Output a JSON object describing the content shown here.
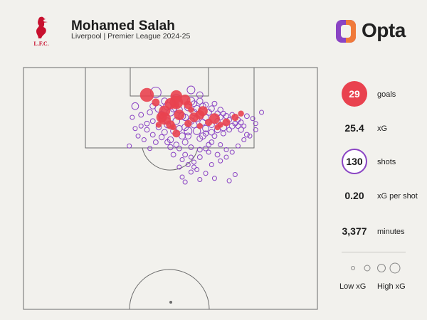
{
  "header": {
    "player_name": "Mohamed Salah",
    "subtitle": "Liverpool | Premier League 2024-25",
    "crest_text": "L.F.C.",
    "brand": "Opta"
  },
  "stats": {
    "goals_value": "29",
    "goals_label": "goals",
    "xg_value": "25.4",
    "xg_label": "xG",
    "shots_value": "130",
    "shots_label": "shots",
    "xg_per_shot_value": "0.20",
    "xg_per_shot_label": "xG per shot",
    "minutes_value": "3,377",
    "minutes_label": "minutes"
  },
  "legend": {
    "low": "Low xG",
    "high": "High xG"
  },
  "colors": {
    "goal": "#e9424f",
    "shot": "#8a44c4",
    "pitch_line": "#6b6b6b",
    "background": "#f2f1ed",
    "opta_purple": "#8a44c4",
    "opta_orange": "#f07a3a",
    "crest": "#c8102e"
  },
  "chart_data": {
    "type": "scatter",
    "x_description": "pitch width",
    "y_description": "distance from goal line",
    "series": [
      {
        "name": "goals",
        "points": [
          [
            0.52,
            0.23,
            0.4
          ],
          [
            0.52,
            0.28,
            0.55
          ],
          [
            0.48,
            0.35,
            0.35
          ],
          [
            0.47,
            0.4,
            0.3
          ],
          [
            0.48,
            0.41,
            0.45
          ],
          [
            0.5,
            0.46,
            0.18
          ],
          [
            0.52,
            0.53,
            0.12
          ],
          [
            0.56,
            0.45,
            0.1
          ],
          [
            0.58,
            0.4,
            0.22
          ],
          [
            0.6,
            0.38,
            0.2
          ],
          [
            0.61,
            0.35,
            0.25
          ],
          [
            0.56,
            0.3,
            0.15
          ],
          [
            0.5,
            0.29,
            0.35
          ],
          [
            0.45,
            0.28,
            0.12
          ],
          [
            0.55,
            0.26,
            0.3
          ],
          [
            0.42,
            0.22,
            0.6
          ],
          [
            0.65,
            0.41,
            0.3
          ],
          [
            0.69,
            0.44,
            0.12
          ],
          [
            0.72,
            0.4,
            0.1
          ],
          [
            0.74,
            0.37,
            0.05
          ],
          [
            0.46,
            0.46,
            0.05
          ],
          [
            0.51,
            0.48,
            0.05
          ],
          [
            0.53,
            0.38,
            0.3
          ],
          [
            0.6,
            0.47,
            0.05
          ],
          [
            0.63,
            0.44,
            0.1
          ],
          [
            0.67,
            0.46,
            0.05
          ],
          [
            0.57,
            0.34,
            0.05
          ],
          [
            0.52,
            0.3,
            0.05
          ],
          [
            0.66,
            0.48,
            0.05
          ]
        ]
      },
      {
        "name": "shots",
        "points": [
          [
            0.38,
            0.31,
            0.08
          ],
          [
            0.45,
            0.2,
            0.3
          ],
          [
            0.52,
            0.25,
            0.18
          ],
          [
            0.57,
            0.18,
            0.12
          ],
          [
            0.57,
            0.27,
            0.12
          ],
          [
            0.6,
            0.27,
            0.05
          ],
          [
            0.62,
            0.3,
            0.03
          ],
          [
            0.65,
            0.29,
            0.02
          ],
          [
            0.67,
            0.34,
            0.03
          ],
          [
            0.68,
            0.37,
            0.02
          ],
          [
            0.71,
            0.38,
            0.02
          ],
          [
            0.73,
            0.42,
            0.02
          ],
          [
            0.76,
            0.39,
            0.02
          ],
          [
            0.81,
            0.36,
            0.01
          ],
          [
            0.79,
            0.5,
            0.01
          ],
          [
            0.76,
            0.54,
            0.02
          ],
          [
            0.74,
            0.5,
            0.03
          ],
          [
            0.71,
            0.47,
            0.04
          ],
          [
            0.68,
            0.48,
            0.08
          ],
          [
            0.66,
            0.5,
            0.05
          ],
          [
            0.64,
            0.52,
            0.04
          ],
          [
            0.62,
            0.49,
            0.06
          ],
          [
            0.59,
            0.51,
            0.1
          ],
          [
            0.56,
            0.51,
            0.12
          ],
          [
            0.54,
            0.55,
            0.06
          ],
          [
            0.52,
            0.43,
            0.08
          ],
          [
            0.49,
            0.43,
            0.06
          ],
          [
            0.46,
            0.48,
            0.03
          ],
          [
            0.44,
            0.43,
            0.02
          ],
          [
            0.42,
            0.45,
            0.02
          ],
          [
            0.4,
            0.47,
            0.01
          ],
          [
            0.39,
            0.55,
            0.01
          ],
          [
            0.41,
            0.58,
            0.01
          ],
          [
            0.36,
            0.63,
            0.01
          ],
          [
            0.5,
            0.64,
            0.03
          ],
          [
            0.55,
            0.7,
            0.02
          ],
          [
            0.58,
            0.76,
            0.01
          ],
          [
            0.6,
            0.72,
            0.02
          ],
          [
            0.62,
            0.65,
            0.02
          ],
          [
            0.64,
            0.6,
            0.02
          ],
          [
            0.63,
            0.62,
            0.02
          ],
          [
            0.67,
            0.62,
            0.01
          ],
          [
            0.69,
            0.66,
            0.01
          ],
          [
            0.58,
            0.8,
            0.01
          ],
          [
            0.57,
            0.84,
            0.01
          ],
          [
            0.54,
            0.88,
            0.01
          ],
          [
            0.55,
            0.92,
            0.01
          ],
          [
            0.6,
            0.9,
            0.01
          ],
          [
            0.65,
            0.89,
            0.01
          ],
          [
            0.7,
            0.91,
            0.01
          ],
          [
            0.72,
            0.86,
            0.01
          ],
          [
            0.66,
            0.7,
            0.02
          ],
          [
            0.61,
            0.55,
            0.06
          ],
          [
            0.55,
            0.6,
            0.04
          ],
          [
            0.53,
            0.65,
            0.02
          ],
          [
            0.5,
            0.58,
            0.05
          ],
          [
            0.48,
            0.52,
            0.04
          ],
          [
            0.45,
            0.6,
            0.02
          ],
          [
            0.43,
            0.65,
            0.01
          ],
          [
            0.5,
            0.36,
            0.1
          ],
          [
            0.54,
            0.39,
            0.08
          ],
          [
            0.57,
            0.43,
            0.06
          ],
          [
            0.59,
            0.41,
            0.05
          ],
          [
            0.62,
            0.4,
            0.07
          ],
          [
            0.63,
            0.36,
            0.05
          ],
          [
            0.64,
            0.33,
            0.04
          ],
          [
            0.66,
            0.37,
            0.03
          ],
          [
            0.67,
            0.4,
            0.03
          ],
          [
            0.7,
            0.42,
            0.02
          ],
          [
            0.72,
            0.45,
            0.02
          ],
          [
            0.74,
            0.44,
            0.02
          ],
          [
            0.69,
            0.39,
            0.03
          ],
          [
            0.66,
            0.43,
            0.03
          ],
          [
            0.64,
            0.46,
            0.04
          ],
          [
            0.61,
            0.44,
            0.05
          ],
          [
            0.58,
            0.46,
            0.06
          ],
          [
            0.55,
            0.48,
            0.07
          ],
          [
            0.53,
            0.49,
            0.05
          ],
          [
            0.51,
            0.51,
            0.04
          ],
          [
            0.49,
            0.46,
            0.06
          ],
          [
            0.47,
            0.38,
            0.08
          ],
          [
            0.46,
            0.33,
            0.1
          ],
          [
            0.49,
            0.31,
            0.12
          ],
          [
            0.56,
            0.32,
            0.08
          ],
          [
            0.59,
            0.33,
            0.06
          ],
          [
            0.61,
            0.31,
            0.05
          ],
          [
            0.58,
            0.36,
            0.06
          ],
          [
            0.55,
            0.4,
            0.07
          ],
          [
            0.56,
            0.55,
            0.05
          ],
          [
            0.6,
            0.57,
            0.04
          ],
          [
            0.62,
            0.53,
            0.03
          ],
          [
            0.65,
            0.55,
            0.02
          ],
          [
            0.68,
            0.53,
            0.02
          ],
          [
            0.7,
            0.5,
            0.02
          ],
          [
            0.73,
            0.47,
            0.02
          ],
          [
            0.75,
            0.47,
            0.01
          ],
          [
            0.44,
            0.54,
            0.02
          ],
          [
            0.42,
            0.5,
            0.02
          ],
          [
            0.47,
            0.56,
            0.03
          ],
          [
            0.49,
            0.6,
            0.03
          ],
          [
            0.52,
            0.62,
            0.03
          ],
          [
            0.57,
            0.64,
            0.02
          ],
          [
            0.6,
            0.66,
            0.02
          ],
          [
            0.63,
            0.68,
            0.01
          ],
          [
            0.51,
            0.7,
            0.02
          ],
          [
            0.54,
            0.74,
            0.01
          ],
          [
            0.57,
            0.72,
            0.01
          ],
          [
            0.56,
            0.78,
            0.01
          ],
          [
            0.53,
            0.8,
            0.01
          ],
          [
            0.59,
            0.82,
            0.01
          ],
          [
            0.62,
            0.85,
            0.01
          ],
          [
            0.64,
            0.78,
            0.01
          ],
          [
            0.67,
            0.75,
            0.01
          ],
          [
            0.69,
            0.72,
            0.01
          ],
          [
            0.71,
            0.68,
            0.01
          ],
          [
            0.73,
            0.63,
            0.01
          ],
          [
            0.75,
            0.58,
            0.01
          ],
          [
            0.77,
            0.55,
            0.01
          ],
          [
            0.79,
            0.45,
            0.01
          ],
          [
            0.78,
            0.41,
            0.01
          ],
          [
            0.37,
            0.4,
            0.01
          ],
          [
            0.38,
            0.49,
            0.01
          ],
          [
            0.4,
            0.38,
            0.02
          ],
          [
            0.43,
            0.36,
            0.03
          ],
          [
            0.44,
            0.31,
            0.04
          ],
          [
            0.48,
            0.27,
            0.06
          ],
          [
            0.51,
            0.33,
            0.07
          ],
          [
            0.53,
            0.34,
            0.06
          ],
          [
            0.58,
            0.29,
            0.04
          ],
          [
            0.6,
            0.22,
            0.06
          ]
        ]
      }
    ],
    "legend": [
      "Low xG",
      "High xG"
    ]
  }
}
